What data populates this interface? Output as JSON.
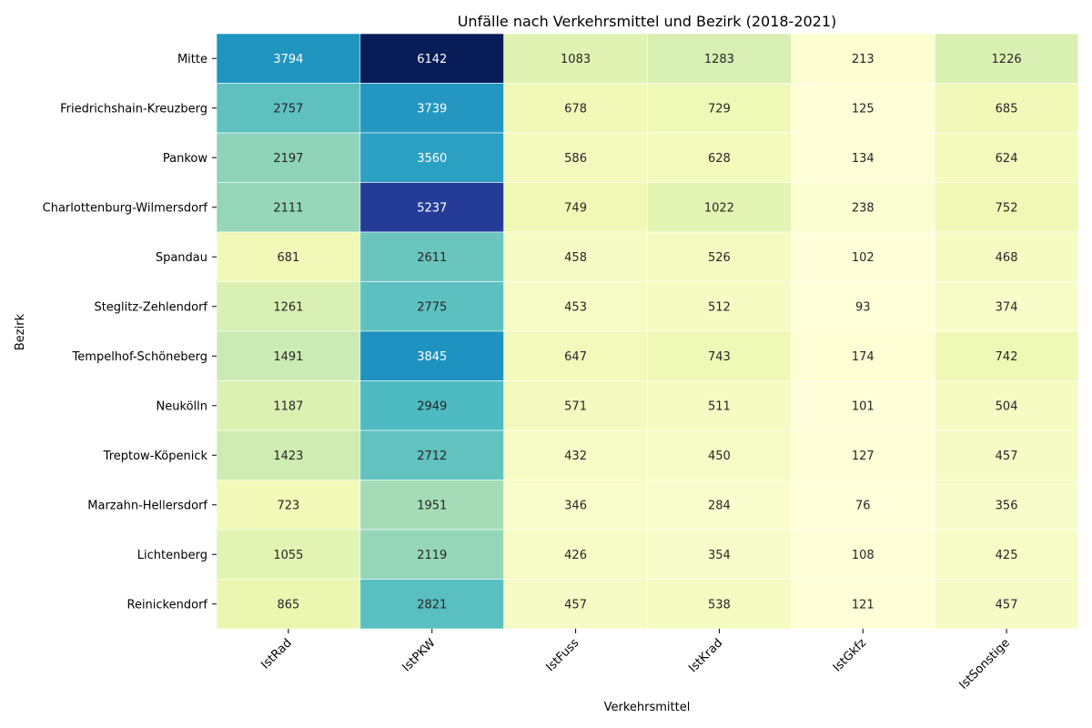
{
  "chart_data": {
    "type": "heatmap",
    "title": "Unfälle nach Verkehrsmittel und Bezirk (2018-2021)",
    "xlabel": "Verkehrsmittel",
    "ylabel": "Bezirk",
    "columns": [
      "IstRad",
      "IstPKW",
      "IstFuss",
      "IstKrad",
      "IstGkfz",
      "IstSonstige"
    ],
    "rows": [
      "Mitte",
      "Friedrichshain-Kreuzberg",
      "Pankow",
      "Charlottenburg-Wilmersdorf",
      "Spandau",
      "Steglitz-Zehlendorf",
      "Tempelhof-Schöneberg",
      "Neukölln",
      "Treptow-Köpenick",
      "Marzahn-Hellersdorf",
      "Lichtenberg",
      "Reinickendorf"
    ],
    "values": [
      [
        3794,
        6142,
        1083,
        1283,
        213,
        1226
      ],
      [
        2757,
        3739,
        678,
        729,
        125,
        685
      ],
      [
        2197,
        3560,
        586,
        628,
        134,
        624
      ],
      [
        2111,
        5237,
        749,
        1022,
        238,
        752
      ],
      [
        681,
        2611,
        458,
        526,
        102,
        468
      ],
      [
        1261,
        2775,
        453,
        512,
        93,
        374
      ],
      [
        1491,
        3845,
        647,
        743,
        174,
        742
      ],
      [
        1187,
        2949,
        571,
        511,
        101,
        504
      ],
      [
        1423,
        2712,
        432,
        450,
        127,
        457
      ],
      [
        723,
        1951,
        346,
        284,
        76,
        356
      ],
      [
        1055,
        2119,
        426,
        354,
        108,
        425
      ],
      [
        865,
        2821,
        457,
        538,
        121,
        457
      ]
    ],
    "colormap": "YlGnBu",
    "annotated": true,
    "legend": "none",
    "grid": false
  }
}
